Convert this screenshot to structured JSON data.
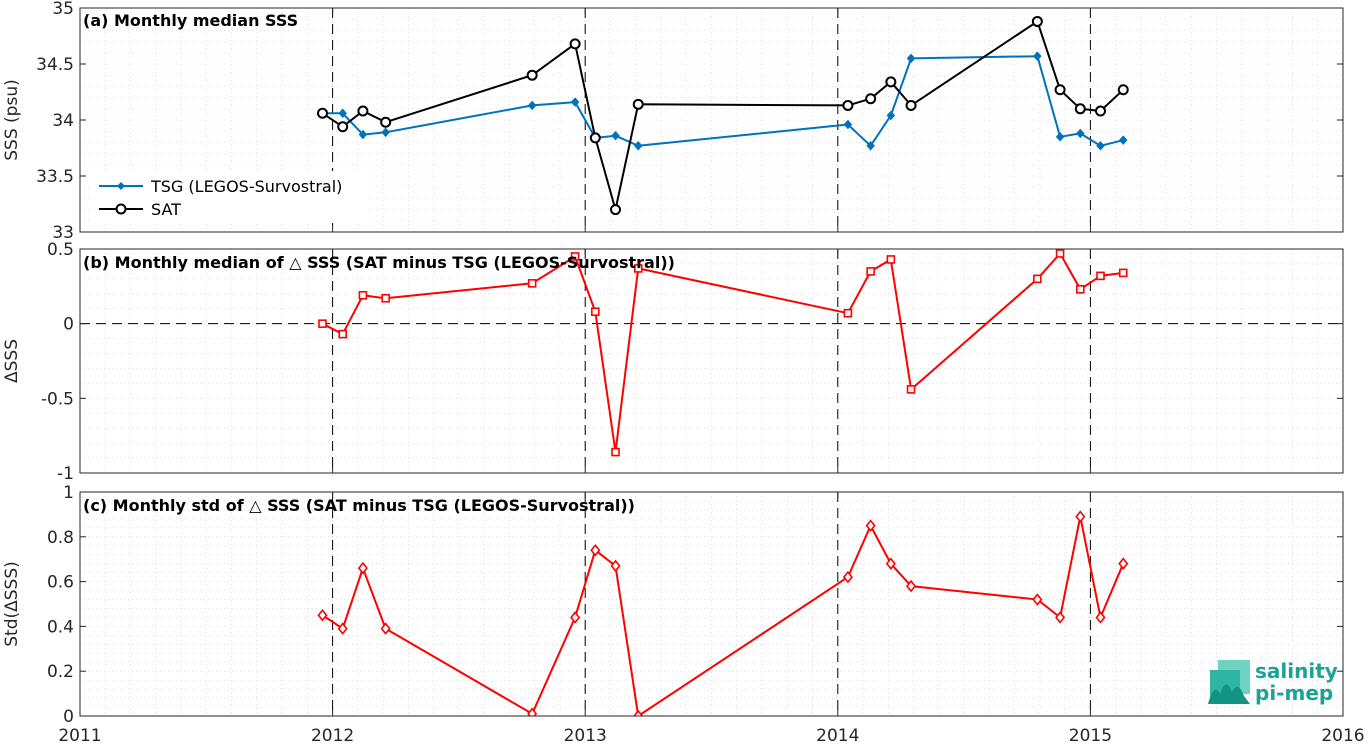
{
  "chart_data": [
    {
      "type": "line",
      "title": "(a) Monthly median SSS",
      "ylabel": "SSS (psu)",
      "ylim": [
        33,
        35
      ],
      "yticks": [
        33,
        33.5,
        34,
        34.5,
        35
      ],
      "ytick_labels": [
        "33",
        "33.5",
        "34",
        "34.5",
        "35"
      ],
      "legend": "bottom-left",
      "grid": true,
      "series": [
        {
          "name": "TSG (LEGOS-Survostral)",
          "color": "#0072BD",
          "marker": "filled-diamond",
          "x": [
            2011.96,
            2012.04,
            2012.12,
            2012.21,
            2012.79,
            2012.96,
            2013.04,
            2013.12,
            2013.21,
            2014.04,
            2014.13,
            2014.21,
            2014.29,
            2014.79,
            2014.88,
            2014.96,
            2015.04,
            2015.13
          ],
          "values": [
            34.06,
            34.06,
            33.87,
            33.89,
            34.13,
            34.16,
            33.84,
            33.86,
            33.77,
            33.96,
            33.77,
            34.04,
            34.55,
            34.57,
            33.85,
            33.88,
            33.77,
            33.82
          ]
        },
        {
          "name": "SAT",
          "color": "#000000",
          "marker": "open-circle",
          "x": [
            2011.96,
            2012.04,
            2012.12,
            2012.21,
            2012.79,
            2012.96,
            2013.04,
            2013.12,
            2013.21,
            2014.04,
            2014.13,
            2014.21,
            2014.29,
            2014.79,
            2014.88,
            2014.96,
            2015.04,
            2015.13
          ],
          "values": [
            34.06,
            33.94,
            34.08,
            33.98,
            34.4,
            34.68,
            33.84,
            33.2,
            34.14,
            34.13,
            34.19,
            34.34,
            34.13,
            34.88,
            34.27,
            34.1,
            34.08,
            34.27
          ]
        }
      ]
    },
    {
      "type": "line",
      "title": "(b) Monthly median of △ SSS (SAT minus TSG (LEGOS-Survostral))",
      "ylabel": "ΔSSS",
      "ylim": [
        -1,
        0.5
      ],
      "yticks": [
        -1,
        -0.5,
        0,
        0.5
      ],
      "ytick_labels": [
        "-1",
        "-0.5",
        "0",
        "0.5"
      ],
      "grid": true,
      "zero_line": true,
      "series": [
        {
          "color": "#FF0000",
          "marker": "open-square",
          "x": [
            2011.96,
            2012.04,
            2012.12,
            2012.21,
            2012.79,
            2012.96,
            2013.04,
            2013.12,
            2013.21,
            2014.04,
            2014.13,
            2014.21,
            2014.29,
            2014.79,
            2014.88,
            2014.96,
            2015.04,
            2015.13
          ],
          "values": [
            0.0,
            -0.07,
            0.19,
            0.17,
            0.27,
            0.45,
            0.08,
            -0.86,
            0.37,
            0.07,
            0.35,
            0.43,
            -0.44,
            0.3,
            0.47,
            0.23,
            0.32,
            0.34
          ]
        }
      ]
    },
    {
      "type": "line",
      "title": "(c) Monthly std of △ SSS (SAT minus TSG (LEGOS-Survostral))",
      "ylabel": "Std(ΔSSS)",
      "ylim": [
        0,
        1
      ],
      "yticks": [
        0,
        0.2,
        0.4,
        0.6,
        0.8,
        1
      ],
      "ytick_labels": [
        "0",
        "0.2",
        "0.4",
        "0.6",
        "0.8",
        "1"
      ],
      "xlim": [
        2011,
        2016
      ],
      "xticks": [
        2011,
        2012,
        2013,
        2014,
        2015,
        2016
      ],
      "xtick_labels": [
        "2011",
        "2012",
        "2013",
        "2014",
        "2015",
        "2016"
      ],
      "grid": true,
      "series": [
        {
          "color": "#FF0000",
          "marker": "open-diamond",
          "x": [
            2011.96,
            2012.04,
            2012.12,
            2012.21,
            2012.79,
            2012.96,
            2013.04,
            2013.12,
            2013.21,
            2014.04,
            2014.13,
            2014.21,
            2014.29,
            2014.79,
            2014.88,
            2014.96,
            2015.04,
            2015.13
          ],
          "values": [
            0.45,
            0.39,
            0.66,
            0.39,
            0.01,
            0.44,
            0.74,
            0.67,
            0.0,
            0.62,
            0.85,
            0.68,
            0.58,
            0.52,
            0.44,
            0.89,
            0.44,
            0.68
          ]
        }
      ]
    }
  ],
  "logo": {
    "line1": "salinity",
    "line2": "pi-mep",
    "color": "#1aa396"
  }
}
